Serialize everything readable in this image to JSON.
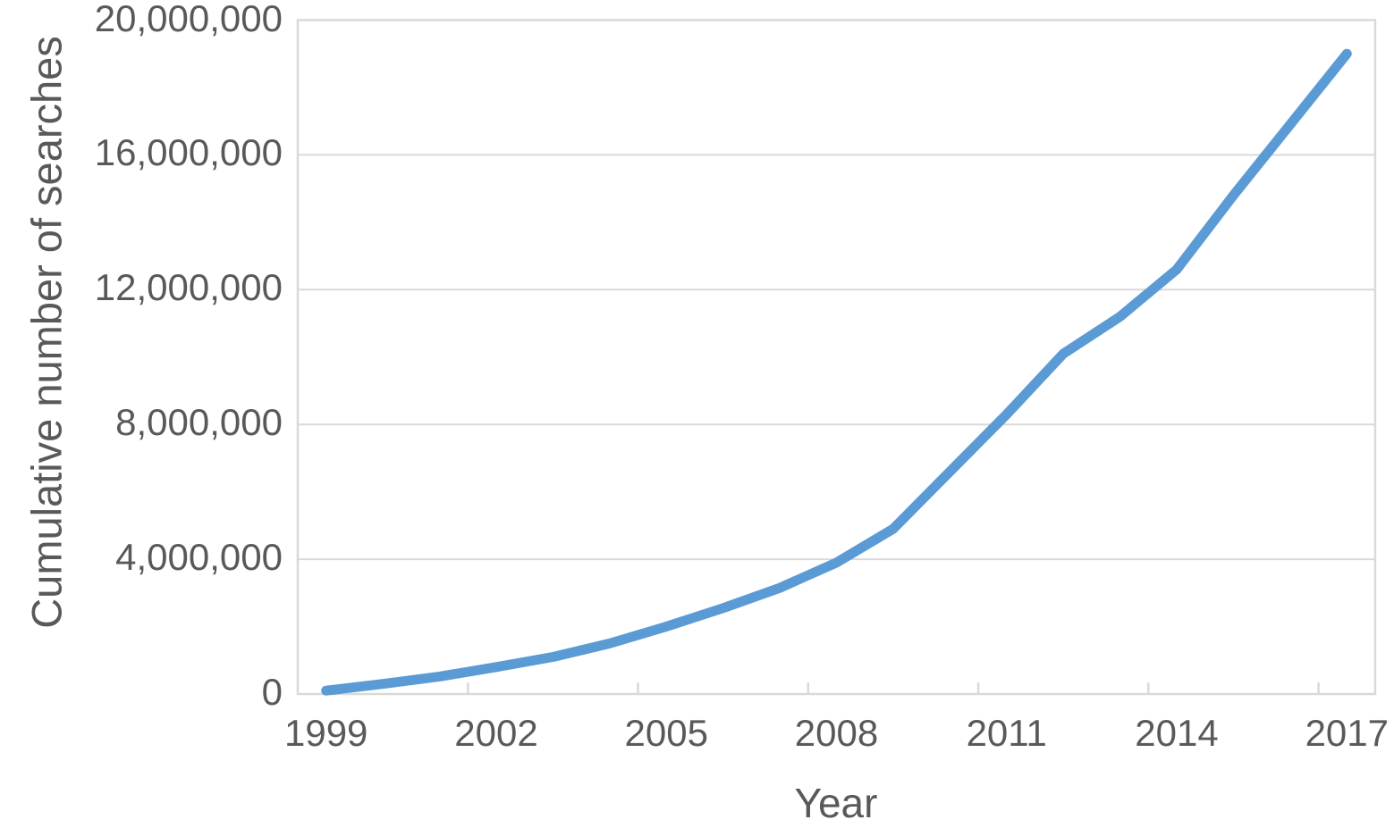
{
  "chart_data": {
    "type": "line",
    "title": "",
    "xlabel": "Year",
    "ylabel": "Cumulative number of searches",
    "x": [
      1999,
      2000,
      2001,
      2002,
      2003,
      2004,
      2005,
      2006,
      2007,
      2008,
      2009,
      2010,
      2011,
      2012,
      2013,
      2014,
      2015,
      2016,
      2017
    ],
    "series": [
      {
        "name": "Cumulative number of searches",
        "values": [
          100000,
          300000,
          520000,
          800000,
          1100000,
          1500000,
          2000000,
          2550000,
          3150000,
          3900000,
          4900000,
          6600000,
          8300000,
          10100000,
          11200000,
          12600000,
          14800000,
          16900000,
          19000000
        ]
      }
    ],
    "x_tick_labels": [
      "1999",
      "2002",
      "2005",
      "2008",
      "2011",
      "2014",
      "2017"
    ],
    "x_tick_years": [
      1999,
      2002,
      2005,
      2008,
      2011,
      2014,
      2017
    ],
    "y_tick_labels": [
      "0",
      "4,000,000",
      "8,000,000",
      "12,000,000",
      "16,000,000",
      "20,000,000"
    ],
    "y_tick_values": [
      0,
      4000000,
      8000000,
      12000000,
      16000000,
      20000000
    ],
    "ylim": [
      0,
      20000000
    ],
    "grid": "horizontal",
    "legend": "none",
    "line_color": "#5B9BD5",
    "grid_color": "#D9D9D9",
    "text_color": "#595959",
    "background_color": "#FFFFFF"
  }
}
